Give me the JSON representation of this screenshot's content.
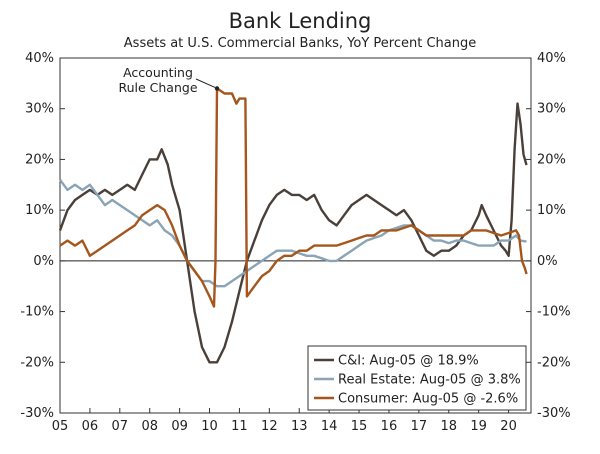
{
  "chart_data": {
    "type": "line",
    "title": "Bank Lending",
    "subtitle": "Assets at U.S. Commercial Banks, YoY Percent Change",
    "ylim": [
      -30,
      40
    ],
    "ytick_labels": [
      "40%",
      "30%",
      "20%",
      "10%",
      "0%",
      "-10%",
      "-20%",
      "-30%"
    ],
    "xlim": [
      2005,
      2020.75
    ],
    "xtick_labels": [
      "05",
      "06",
      "07",
      "08",
      "09",
      "10",
      "11",
      "12",
      "13",
      "14",
      "15",
      "16",
      "17",
      "18",
      "19",
      "20"
    ],
    "annotation": {
      "lines": [
        "Accounting",
        "Rule Change"
      ],
      "point": {
        "x": 2010.25,
        "y": 34
      }
    },
    "legend_position": "bottom-right",
    "series": [
      {
        "name": "C&I: Aug-05 @ 18.9%",
        "color": "#4a4039",
        "points": [
          [
            2005.0,
            6
          ],
          [
            2005.25,
            10
          ],
          [
            2005.5,
            12
          ],
          [
            2005.75,
            13
          ],
          [
            2006.0,
            14
          ],
          [
            2006.25,
            13
          ],
          [
            2006.5,
            14
          ],
          [
            2006.75,
            13
          ],
          [
            2007.0,
            14
          ],
          [
            2007.25,
            15
          ],
          [
            2007.5,
            14
          ],
          [
            2007.75,
            17
          ],
          [
            2008.0,
            20
          ],
          [
            2008.25,
            20
          ],
          [
            2008.4,
            22
          ],
          [
            2008.6,
            19
          ],
          [
            2008.75,
            15
          ],
          [
            2009.0,
            10
          ],
          [
            2009.25,
            0
          ],
          [
            2009.5,
            -10
          ],
          [
            2009.75,
            -17
          ],
          [
            2010.0,
            -20
          ],
          [
            2010.25,
            -20
          ],
          [
            2010.5,
            -17
          ],
          [
            2010.75,
            -12
          ],
          [
            2011.0,
            -6
          ],
          [
            2011.25,
            0
          ],
          [
            2011.5,
            4
          ],
          [
            2011.75,
            8
          ],
          [
            2012.0,
            11
          ],
          [
            2012.25,
            13
          ],
          [
            2012.5,
            14
          ],
          [
            2012.75,
            13
          ],
          [
            2013.0,
            13
          ],
          [
            2013.25,
            12
          ],
          [
            2013.5,
            13
          ],
          [
            2013.75,
            10
          ],
          [
            2014.0,
            8
          ],
          [
            2014.25,
            7
          ],
          [
            2014.5,
            9
          ],
          [
            2014.75,
            11
          ],
          [
            2015.0,
            12
          ],
          [
            2015.25,
            13
          ],
          [
            2015.5,
            12
          ],
          [
            2015.75,
            11
          ],
          [
            2016.0,
            10
          ],
          [
            2016.25,
            9
          ],
          [
            2016.5,
            10
          ],
          [
            2016.75,
            8
          ],
          [
            2017.0,
            5
          ],
          [
            2017.25,
            2
          ],
          [
            2017.5,
            1
          ],
          [
            2017.75,
            2
          ],
          [
            2018.0,
            2
          ],
          [
            2018.25,
            3
          ],
          [
            2018.5,
            5
          ],
          [
            2018.75,
            6
          ],
          [
            2019.0,
            9
          ],
          [
            2019.1,
            11
          ],
          [
            2019.25,
            9
          ],
          [
            2019.5,
            6
          ],
          [
            2019.75,
            3
          ],
          [
            2019.9,
            2
          ],
          [
            2020.0,
            1
          ],
          [
            2020.1,
            8
          ],
          [
            2020.2,
            22
          ],
          [
            2020.3,
            31
          ],
          [
            2020.4,
            27
          ],
          [
            2020.5,
            21
          ],
          [
            2020.6,
            18.9
          ]
        ]
      },
      {
        "name": "Real Estate: Aug-05 @ 3.8%",
        "color": "#8aa4b5",
        "points": [
          [
            2005.0,
            16
          ],
          [
            2005.25,
            14
          ],
          [
            2005.5,
            15
          ],
          [
            2005.75,
            14
          ],
          [
            2006.0,
            15
          ],
          [
            2006.25,
            13
          ],
          [
            2006.5,
            11
          ],
          [
            2006.75,
            12
          ],
          [
            2007.0,
            11
          ],
          [
            2007.25,
            10
          ],
          [
            2007.5,
            9
          ],
          [
            2007.75,
            8
          ],
          [
            2008.0,
            7
          ],
          [
            2008.25,
            8
          ],
          [
            2008.5,
            6
          ],
          [
            2008.75,
            5
          ],
          [
            2009.0,
            3
          ],
          [
            2009.25,
            0
          ],
          [
            2009.5,
            -2
          ],
          [
            2009.75,
            -4
          ],
          [
            2010.0,
            -4
          ],
          [
            2010.25,
            -5
          ],
          [
            2010.5,
            -5
          ],
          [
            2010.75,
            -4
          ],
          [
            2011.0,
            -3
          ],
          [
            2011.25,
            -2
          ],
          [
            2011.5,
            -1
          ],
          [
            2011.75,
            0
          ],
          [
            2012.0,
            1
          ],
          [
            2012.25,
            2
          ],
          [
            2012.5,
            2
          ],
          [
            2012.75,
            2
          ],
          [
            2013.0,
            1.5
          ],
          [
            2013.25,
            1
          ],
          [
            2013.5,
            1
          ],
          [
            2013.75,
            0.5
          ],
          [
            2014.0,
            0
          ],
          [
            2014.25,
            0
          ],
          [
            2014.5,
            1
          ],
          [
            2014.75,
            2
          ],
          [
            2015.0,
            3
          ],
          [
            2015.25,
            4
          ],
          [
            2015.5,
            4.5
          ],
          [
            2015.75,
            5
          ],
          [
            2016.0,
            6
          ],
          [
            2016.25,
            6.5
          ],
          [
            2016.5,
            7
          ],
          [
            2016.75,
            7
          ],
          [
            2017.0,
            6
          ],
          [
            2017.25,
            5
          ],
          [
            2017.5,
            4
          ],
          [
            2017.75,
            4
          ],
          [
            2018.0,
            3.5
          ],
          [
            2018.25,
            4
          ],
          [
            2018.5,
            4
          ],
          [
            2018.75,
            3.5
          ],
          [
            2019.0,
            3
          ],
          [
            2019.25,
            3
          ],
          [
            2019.5,
            3
          ],
          [
            2019.75,
            4
          ],
          [
            2020.0,
            4
          ],
          [
            2020.25,
            5
          ],
          [
            2020.4,
            4
          ],
          [
            2020.6,
            3.8
          ]
        ]
      },
      {
        "name": "Consumer: Aug-05 @ -2.6%",
        "color": "#a5561d",
        "points": [
          [
            2005.0,
            3
          ],
          [
            2005.25,
            4
          ],
          [
            2005.5,
            3
          ],
          [
            2005.75,
            4
          ],
          [
            2006.0,
            1
          ],
          [
            2006.25,
            2
          ],
          [
            2006.5,
            3
          ],
          [
            2006.75,
            4
          ],
          [
            2007.0,
            5
          ],
          [
            2007.25,
            6
          ],
          [
            2007.5,
            7
          ],
          [
            2007.75,
            9
          ],
          [
            2008.0,
            10
          ],
          [
            2008.25,
            11
          ],
          [
            2008.5,
            10
          ],
          [
            2008.75,
            7
          ],
          [
            2009.0,
            3
          ],
          [
            2009.25,
            0
          ],
          [
            2009.5,
            -2
          ],
          [
            2009.75,
            -4
          ],
          [
            2010.0,
            -7
          ],
          [
            2010.15,
            -9
          ],
          [
            2010.2,
            0
          ],
          [
            2010.25,
            34
          ],
          [
            2010.5,
            33
          ],
          [
            2010.75,
            33
          ],
          [
            2010.9,
            31
          ],
          [
            2011.0,
            32
          ],
          [
            2011.2,
            32
          ],
          [
            2011.25,
            -7
          ],
          [
            2011.5,
            -5
          ],
          [
            2011.75,
            -3
          ],
          [
            2012.0,
            -2
          ],
          [
            2012.25,
            0
          ],
          [
            2012.5,
            1
          ],
          [
            2012.75,
            1
          ],
          [
            2013.0,
            2
          ],
          [
            2013.25,
            2
          ],
          [
            2013.5,
            3
          ],
          [
            2013.75,
            3
          ],
          [
            2014.0,
            3
          ],
          [
            2014.25,
            3
          ],
          [
            2014.5,
            3.5
          ],
          [
            2014.75,
            4
          ],
          [
            2015.0,
            4.5
          ],
          [
            2015.25,
            5
          ],
          [
            2015.5,
            5
          ],
          [
            2015.75,
            6
          ],
          [
            2016.0,
            6
          ],
          [
            2016.25,
            6
          ],
          [
            2016.5,
            6.5
          ],
          [
            2016.75,
            7
          ],
          [
            2017.0,
            6
          ],
          [
            2017.25,
            5
          ],
          [
            2017.5,
            5
          ],
          [
            2017.75,
            5
          ],
          [
            2018.0,
            5
          ],
          [
            2018.25,
            5
          ],
          [
            2018.5,
            5
          ],
          [
            2018.75,
            6
          ],
          [
            2019.0,
            6
          ],
          [
            2019.25,
            6
          ],
          [
            2019.5,
            5.5
          ],
          [
            2019.75,
            5
          ],
          [
            2020.0,
            5.5
          ],
          [
            2020.25,
            6
          ],
          [
            2020.35,
            5
          ],
          [
            2020.45,
            0
          ],
          [
            2020.55,
            -1.5
          ],
          [
            2020.6,
            -2.6
          ]
        ]
      }
    ]
  }
}
